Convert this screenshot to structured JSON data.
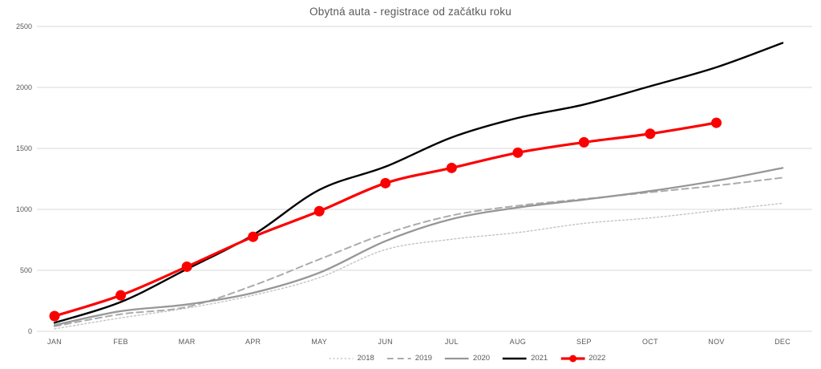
{
  "chart_data": {
    "type": "line",
    "title": "Obytná auta - registrace od začátku roku",
    "categories": [
      "JAN",
      "FEB",
      "MAR",
      "APR",
      "MAY",
      "JUN",
      "JUL",
      "AUG",
      "SEP",
      "OCT",
      "NOV",
      "DEC"
    ],
    "series": [
      {
        "name": "2018",
        "color": "#c3c3c3",
        "dash": "dotted",
        "line_width": 1.4,
        "marker": "none",
        "values": [
          20,
          110,
          190,
          295,
          440,
          670,
          755,
          810,
          885,
          930,
          990,
          1050
        ]
      },
      {
        "name": "2019",
        "color": "#acacac",
        "dash": "dashed",
        "line_width": 2,
        "marker": "none",
        "values": [
          40,
          140,
          200,
          375,
          590,
          800,
          950,
          1030,
          1085,
          1140,
          1195,
          1260
        ]
      },
      {
        "name": "2020",
        "color": "#979797",
        "dash": "solid",
        "line_width": 2.3,
        "marker": "none",
        "values": [
          50,
          165,
          220,
          315,
          480,
          740,
          920,
          1015,
          1080,
          1150,
          1235,
          1340
        ]
      },
      {
        "name": "2021",
        "color": "#000000",
        "dash": "solid",
        "line_width": 2.4,
        "marker": "none",
        "values": [
          70,
          240,
          510,
          790,
          1160,
          1350,
          1590,
          1750,
          1860,
          2010,
          2165,
          2365
        ]
      },
      {
        "name": "2022",
        "color": "#fb0000",
        "dash": "solid",
        "line_width": 3.2,
        "marker": "circle",
        "marker_size": 6.5,
        "values": [
          125,
          295,
          530,
          775,
          985,
          1215,
          1340,
          1465,
          1550,
          1620,
          1710,
          null
        ]
      }
    ],
    "ylim": [
      0,
      2500
    ],
    "yticks": [
      0,
      500,
      1000,
      1500,
      2000,
      2500
    ],
    "xlabel": "",
    "ylabel": "",
    "grid": "horizontal",
    "grid_color": "#d9d9d9",
    "axis_text_color": "#595959",
    "title_color": "#595959",
    "legend_position": "bottom",
    "line_smoothing": true
  }
}
